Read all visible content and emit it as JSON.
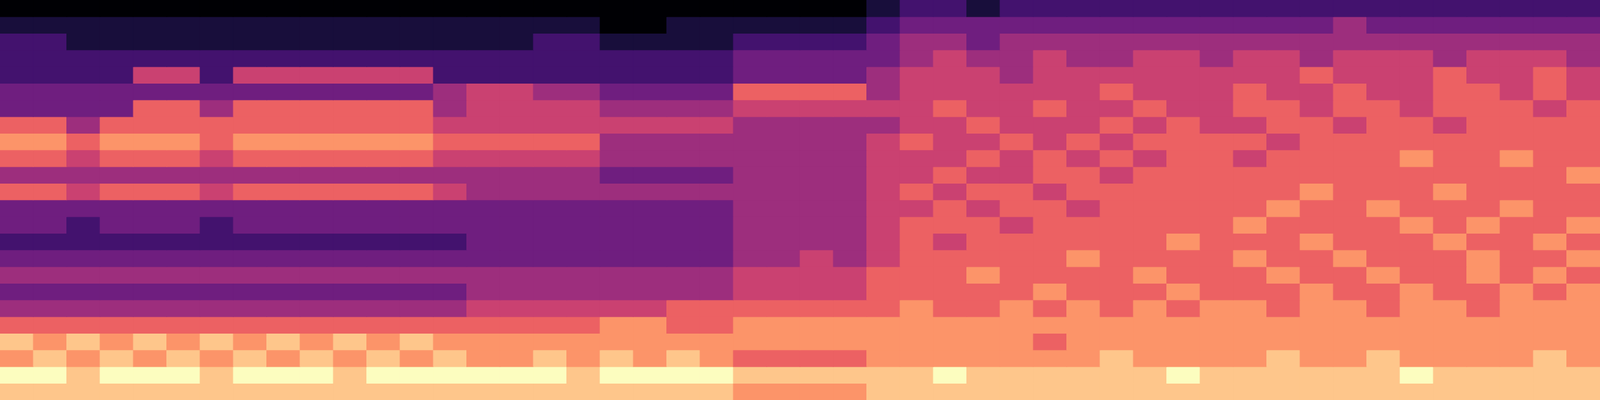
{
  "chart_data": {
    "type": "heatmap",
    "grid": false,
    "tick_labels": false,
    "color_range": [
      0,
      9
    ],
    "cells": [
      [
        0,
        0,
        0,
        0,
        0,
        0,
        0,
        0,
        0,
        0,
        0,
        0,
        0,
        0,
        0,
        0,
        0,
        0,
        0,
        0,
        0,
        0,
        0,
        0,
        0,
        0,
        1,
        2,
        2,
        1,
        2,
        2,
        2,
        2,
        2,
        2,
        2,
        2,
        2,
        2,
        2,
        2,
        2,
        2,
        2,
        2,
        2,
        2
      ],
      [
        1,
        1,
        1,
        1,
        1,
        1,
        1,
        1,
        1,
        1,
        1,
        1,
        1,
        1,
        1,
        1,
        1,
        1,
        0,
        0,
        1,
        1,
        1,
        1,
        1,
        1,
        2,
        3,
        3,
        3,
        3,
        3,
        3,
        3,
        3,
        3,
        3,
        3,
        3,
        3,
        4,
        3,
        3,
        3,
        3,
        3,
        3,
        3
      ],
      [
        2,
        2,
        1,
        1,
        1,
        1,
        1,
        1,
        1,
        1,
        1,
        1,
        1,
        1,
        1,
        1,
        2,
        2,
        1,
        1,
        1,
        1,
        2,
        2,
        2,
        2,
        3,
        4,
        4,
        3,
        4,
        4,
        4,
        4,
        4,
        4,
        4,
        4,
        4,
        4,
        4,
        4,
        4,
        4,
        4,
        4,
        4,
        4
      ],
      [
        2,
        2,
        2,
        2,
        2,
        2,
        2,
        2,
        2,
        2,
        2,
        2,
        2,
        2,
        2,
        2,
        2,
        2,
        2,
        2,
        2,
        2,
        3,
        3,
        3,
        3,
        3,
        4,
        5,
        4,
        4,
        5,
        4,
        4,
        5,
        5,
        4,
        5,
        5,
        4,
        5,
        5,
        5,
        4,
        5,
        5,
        5,
        4
      ],
      [
        2,
        2,
        2,
        2,
        5,
        5,
        2,
        5,
        5,
        5,
        5,
        5,
        5,
        2,
        2,
        2,
        2,
        2,
        2,
        2,
        2,
        2,
        3,
        3,
        3,
        3,
        4,
        5,
        5,
        5,
        4,
        5,
        5,
        5,
        5,
        5,
        5,
        5,
        5,
        6,
        5,
        5,
        5,
        6,
        5,
        5,
        6,
        5
      ],
      [
        3,
        3,
        3,
        3,
        3,
        3,
        3,
        3,
        3,
        3,
        3,
        3,
        3,
        4,
        5,
        5,
        4,
        4,
        3,
        3,
        3,
        3,
        6,
        6,
        6,
        6,
        4,
        5,
        5,
        5,
        5,
        5,
        5,
        6,
        5,
        5,
        5,
        6,
        5,
        5,
        6,
        5,
        5,
        6,
        6,
        5,
        6,
        5
      ],
      [
        3,
        3,
        3,
        3,
        6,
        6,
        4,
        6,
        6,
        6,
        6,
        6,
        6,
        4,
        5,
        5,
        5,
        5,
        4,
        4,
        4,
        4,
        5,
        5,
        5,
        5,
        5,
        5,
        6,
        5,
        5,
        6,
        5,
        5,
        6,
        5,
        5,
        6,
        6,
        5,
        6,
        6,
        5,
        6,
        6,
        6,
        5,
        6
      ],
      [
        6,
        6,
        4,
        6,
        6,
        6,
        6,
        6,
        6,
        6,
        6,
        6,
        6,
        5,
        5,
        5,
        5,
        5,
        5,
        5,
        5,
        5,
        4,
        4,
        4,
        4,
        4,
        5,
        5,
        6,
        5,
        5,
        5,
        6,
        5,
        6,
        5,
        5,
        6,
        6,
        5,
        6,
        6,
        5,
        6,
        6,
        6,
        6
      ],
      [
        7,
        7,
        6,
        7,
        7,
        7,
        6,
        7,
        7,
        7,
        7,
        7,
        7,
        6,
        6,
        6,
        6,
        6,
        4,
        4,
        4,
        4,
        4,
        4,
        4,
        4,
        5,
        6,
        5,
        5,
        6,
        5,
        6,
        5,
        6,
        6,
        6,
        6,
        5,
        6,
        6,
        6,
        6,
        6,
        6,
        6,
        6,
        6
      ],
      [
        6,
        6,
        5,
        6,
        6,
        6,
        5,
        6,
        6,
        6,
        6,
        6,
        6,
        5,
        5,
        5,
        5,
        5,
        4,
        4,
        4,
        4,
        4,
        4,
        4,
        4,
        5,
        5,
        5,
        6,
        5,
        6,
        5,
        6,
        5,
        6,
        6,
        5,
        6,
        6,
        6,
        6,
        7,
        6,
        6,
        7,
        6,
        6
      ],
      [
        4,
        4,
        4,
        4,
        4,
        4,
        4,
        4,
        4,
        4,
        4,
        4,
        4,
        4,
        4,
        4,
        4,
        4,
        3,
        3,
        3,
        3,
        4,
        4,
        4,
        4,
        5,
        5,
        6,
        5,
        5,
        6,
        6,
        5,
        6,
        6,
        6,
        6,
        6,
        6,
        6,
        6,
        6,
        6,
        6,
        6,
        6,
        7
      ],
      [
        6,
        6,
        5,
        6,
        6,
        6,
        5,
        6,
        6,
        6,
        6,
        6,
        6,
        5,
        4,
        4,
        4,
        4,
        4,
        4,
        4,
        4,
        4,
        4,
        4,
        4,
        5,
        6,
        5,
        6,
        6,
        5,
        6,
        6,
        6,
        6,
        6,
        6,
        6,
        7,
        6,
        6,
        6,
        7,
        6,
        6,
        6,
        6
      ],
      [
        3,
        3,
        3,
        3,
        3,
        3,
        3,
        3,
        3,
        3,
        3,
        3,
        3,
        3,
        3,
        3,
        3,
        3,
        3,
        3,
        3,
        3,
        4,
        4,
        4,
        4,
        5,
        5,
        6,
        5,
        6,
        6,
        5,
        6,
        6,
        6,
        6,
        6,
        7,
        6,
        6,
        7,
        6,
        6,
        6,
        7,
        6,
        6
      ],
      [
        3,
        3,
        2,
        3,
        3,
        3,
        2,
        3,
        3,
        3,
        3,
        3,
        3,
        3,
        3,
        3,
        3,
        3,
        3,
        3,
        3,
        3,
        4,
        4,
        4,
        4,
        5,
        6,
        6,
        6,
        5,
        6,
        6,
        6,
        6,
        6,
        6,
        7,
        6,
        6,
        6,
        6,
        7,
        6,
        7,
        6,
        6,
        7
      ],
      [
        2,
        2,
        2,
        2,
        2,
        2,
        2,
        2,
        2,
        2,
        2,
        2,
        2,
        2,
        3,
        3,
        3,
        3,
        3,
        3,
        3,
        3,
        4,
        4,
        4,
        4,
        5,
        6,
        5,
        6,
        6,
        6,
        6,
        6,
        6,
        7,
        6,
        6,
        6,
        7,
        6,
        6,
        6,
        7,
        6,
        6,
        7,
        6
      ],
      [
        3,
        3,
        3,
        3,
        3,
        3,
        3,
        3,
        3,
        3,
        3,
        3,
        3,
        3,
        3,
        3,
        3,
        3,
        3,
        3,
        3,
        3,
        4,
        4,
        5,
        4,
        5,
        6,
        6,
        6,
        6,
        6,
        7,
        6,
        6,
        6,
        6,
        7,
        6,
        6,
        7,
        6,
        6,
        6,
        7,
        6,
        6,
        7
      ],
      [
        4,
        4,
        4,
        4,
        4,
        4,
        4,
        4,
        4,
        4,
        4,
        4,
        4,
        4,
        4,
        4,
        4,
        4,
        4,
        4,
        4,
        4,
        5,
        5,
        5,
        5,
        6,
        6,
        6,
        7,
        6,
        6,
        6,
        6,
        7,
        6,
        6,
        6,
        7,
        6,
        6,
        7,
        6,
        6,
        7,
        6,
        7,
        6
      ],
      [
        3,
        3,
        3,
        3,
        3,
        3,
        3,
        3,
        3,
        3,
        3,
        3,
        3,
        3,
        4,
        4,
        4,
        4,
        4,
        4,
        4,
        4,
        5,
        5,
        5,
        5,
        6,
        6,
        6,
        6,
        6,
        7,
        6,
        6,
        6,
        7,
        6,
        6,
        6,
        7,
        6,
        6,
        7,
        6,
        6,
        7,
        6,
        7
      ],
      [
        4,
        4,
        4,
        4,
        4,
        4,
        4,
        4,
        4,
        4,
        4,
        4,
        4,
        4,
        5,
        5,
        5,
        5,
        5,
        5,
        6,
        6,
        6,
        6,
        6,
        6,
        6,
        7,
        6,
        6,
        7,
        6,
        7,
        6,
        7,
        6,
        7,
        7,
        6,
        7,
        7,
        6,
        7,
        7,
        6,
        7,
        7,
        7
      ],
      [
        6,
        6,
        6,
        6,
        6,
        6,
        6,
        6,
        6,
        6,
        6,
        6,
        6,
        6,
        6,
        6,
        6,
        6,
        7,
        7,
        6,
        6,
        7,
        7,
        7,
        7,
        7,
        7,
        7,
        7,
        7,
        7,
        7,
        7,
        7,
        7,
        7,
        7,
        7,
        7,
        7,
        7,
        7,
        7,
        7,
        7,
        7,
        7
      ],
      [
        8,
        7,
        8,
        7,
        8,
        7,
        8,
        7,
        8,
        7,
        8,
        7,
        8,
        7,
        7,
        7,
        7,
        7,
        7,
        7,
        7,
        7,
        7,
        7,
        7,
        7,
        7,
        7,
        7,
        7,
        7,
        6,
        7,
        7,
        7,
        7,
        7,
        7,
        7,
        7,
        7,
        7,
        7,
        7,
        7,
        7,
        7,
        7
      ],
      [
        7,
        8,
        7,
        8,
        7,
        8,
        7,
        8,
        7,
        8,
        7,
        8,
        7,
        8,
        7,
        7,
        8,
        7,
        8,
        7,
        8,
        7,
        6,
        6,
        6,
        6,
        7,
        7,
        7,
        7,
        7,
        7,
        7,
        8,
        7,
        7,
        7,
        7,
        8,
        7,
        7,
        8,
        7,
        7,
        7,
        7,
        8,
        7
      ],
      [
        9,
        9,
        8,
        9,
        9,
        9,
        8,
        9,
        9,
        9,
        8,
        9,
        9,
        9,
        9,
        9,
        9,
        8,
        9,
        9,
        9,
        9,
        8,
        8,
        8,
        8,
        8,
        8,
        9,
        8,
        8,
        8,
        8,
        8,
        8,
        9,
        8,
        8,
        8,
        8,
        8,
        8,
        9,
        8,
        8,
        8,
        8,
        8
      ],
      [
        8,
        8,
        8,
        8,
        8,
        8,
        8,
        8,
        8,
        8,
        8,
        8,
        8,
        8,
        8,
        8,
        8,
        8,
        8,
        8,
        8,
        8,
        7,
        7,
        7,
        7,
        8,
        8,
        8,
        8,
        8,
        8,
        8,
        8,
        8,
        8,
        8,
        8,
        8,
        8,
        8,
        8,
        8,
        8,
        8,
        8,
        8,
        8
      ]
    ]
  }
}
